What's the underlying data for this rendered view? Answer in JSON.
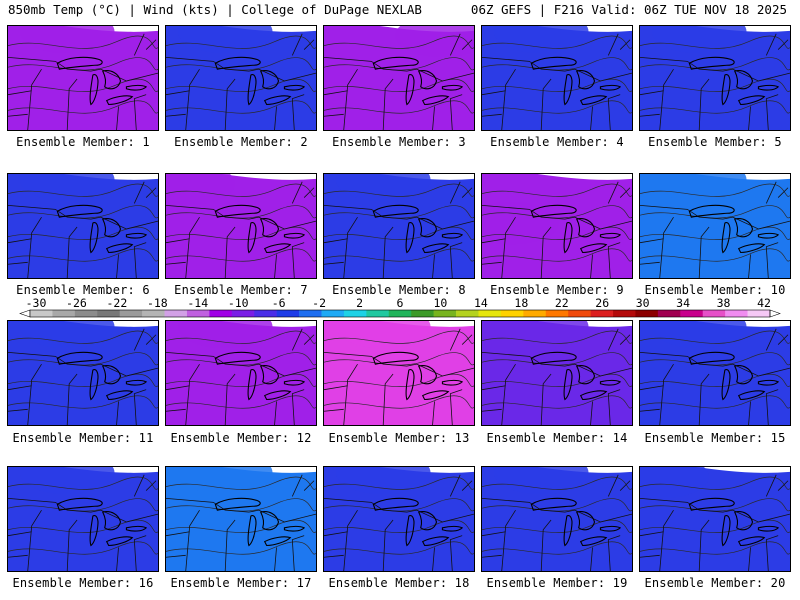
{
  "header": {
    "left": "850mb Temp (°C) | Wind (kts) | College of DuPage NEXLAB",
    "right": "06Z GEFS | F216 Valid: 06Z TUE NOV 18 2025"
  },
  "members": [
    {
      "label": "Ensemble Member: 1",
      "mean_temp_c": -6,
      "cold_core": "north"
    },
    {
      "label": "Ensemble Member: 2",
      "mean_temp_c": 2,
      "cold_core": "north"
    },
    {
      "label": "Ensemble Member: 3",
      "mean_temp_c": -6,
      "cold_core": "northeast"
    },
    {
      "label": "Ensemble Member: 4",
      "mean_temp_c": 2,
      "cold_core": "north"
    },
    {
      "label": "Ensemble Member: 5",
      "mean_temp_c": 2,
      "cold_core": "north"
    },
    {
      "label": "Ensemble Member: 6",
      "mean_temp_c": 2,
      "cold_core": "north"
    },
    {
      "label": "Ensemble Member: 7",
      "mean_temp_c": -6,
      "cold_core": "northwest"
    },
    {
      "label": "Ensemble Member: 8",
      "mean_temp_c": 2,
      "cold_core": "north"
    },
    {
      "label": "Ensemble Member: 9",
      "mean_temp_c": -6,
      "cold_core": "west"
    },
    {
      "label": "Ensemble Member: 10",
      "mean_temp_c": 6,
      "cold_core": "north"
    },
    {
      "label": "Ensemble Member: 11",
      "mean_temp_c": 2,
      "cold_core": "north"
    },
    {
      "label": "Ensemble Member: 12",
      "mean_temp_c": -6,
      "cold_core": "north"
    },
    {
      "label": "Ensemble Member: 13",
      "mean_temp_c": -10,
      "cold_core": "north"
    },
    {
      "label": "Ensemble Member: 14",
      "mean_temp_c": -2,
      "cold_core": "north"
    },
    {
      "label": "Ensemble Member: 15",
      "mean_temp_c": 2,
      "cold_core": "north"
    },
    {
      "label": "Ensemble Member: 16",
      "mean_temp_c": 2,
      "cold_core": "north"
    },
    {
      "label": "Ensemble Member: 17",
      "mean_temp_c": 6,
      "cold_core": "north"
    },
    {
      "label": "Ensemble Member: 18",
      "mean_temp_c": 2,
      "cold_core": "north"
    },
    {
      "label": "Ensemble Member: 19",
      "mean_temp_c": 2,
      "cold_core": "north"
    },
    {
      "label": "Ensemble Member: 20",
      "mean_temp_c": 2,
      "cold_core": "northwest"
    }
  ],
  "colorbar": {
    "ticks": [
      "-30",
      "-26",
      "-22",
      "-18",
      "-14",
      "-10",
      "-6",
      "-2",
      "2",
      "6",
      "10",
      "14",
      "18",
      "22",
      "26",
      "30",
      "34",
      "38",
      "42"
    ],
    "colors": [
      "#c8c8c8",
      "#a8a8a8",
      "#8c8c8c",
      "#787878",
      "#9a9a9a",
      "#b4b4b4",
      "#d2a0e6",
      "#c060e0",
      "#a000e6",
      "#7a1ee6",
      "#4a2ee8",
      "#1e3ce8",
      "#1e6ef0",
      "#1eaaf5",
      "#1ed2e6",
      "#20c8a0",
      "#20b45a",
      "#3c9a28",
      "#78b41e",
      "#b4d21e",
      "#e6e60a",
      "#ffd200",
      "#ffaa00",
      "#ff7800",
      "#f04a0a",
      "#dc1e1e",
      "#b40a0a",
      "#8c0000",
      "#a00050",
      "#c8008c",
      "#e650c8",
      "#f08cf0",
      "#f5c8f5"
    ]
  }
}
